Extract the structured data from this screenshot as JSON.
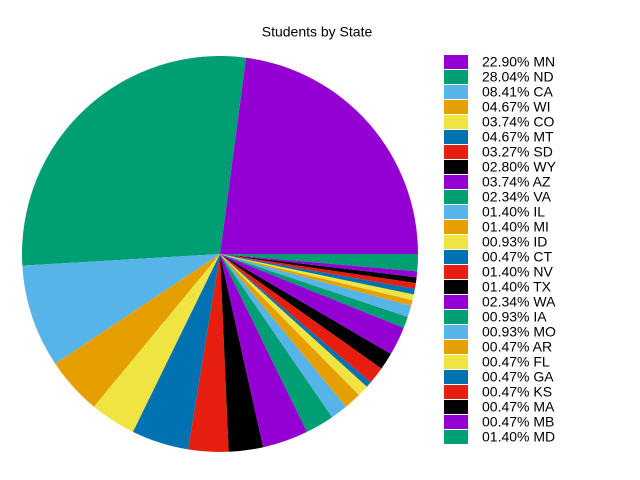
{
  "chart_data": {
    "type": "pie",
    "title": "Students by State",
    "categories": [
      "22.90% MN",
      "28.04% ND",
      "08.41% CA",
      "04.67% WI",
      "03.74% CO",
      "04.67% MT",
      "03.27% SD",
      "02.80% WY",
      "03.74% AZ",
      "02.34% VA",
      "01.40% IL",
      "01.40% MI",
      "00.93% ID",
      "00.47% CT",
      "01.40% NV",
      "01.40% TX",
      "02.34% WA",
      "00.93% IA",
      "00.93% MO",
      "00.47% AR",
      "00.47% FL",
      "00.47% GA",
      "00.47% KS",
      "00.47% MA",
      "00.47% MB",
      "01.40% MD"
    ],
    "values": [
      22.9,
      28.04,
      8.41,
      4.67,
      3.74,
      4.67,
      3.27,
      2.8,
      3.74,
      2.34,
      1.4,
      1.4,
      0.93,
      0.47,
      1.4,
      1.4,
      2.34,
      0.93,
      0.93,
      0.47,
      0.47,
      0.47,
      0.47,
      0.47,
      0.47,
      1.4
    ],
    "colors": [
      "#9400d3",
      "#009e73",
      "#56b4e9",
      "#e69f00",
      "#f0e442",
      "#0072b2",
      "#e51e10",
      "#000000"
    ],
    "legend": "right"
  }
}
